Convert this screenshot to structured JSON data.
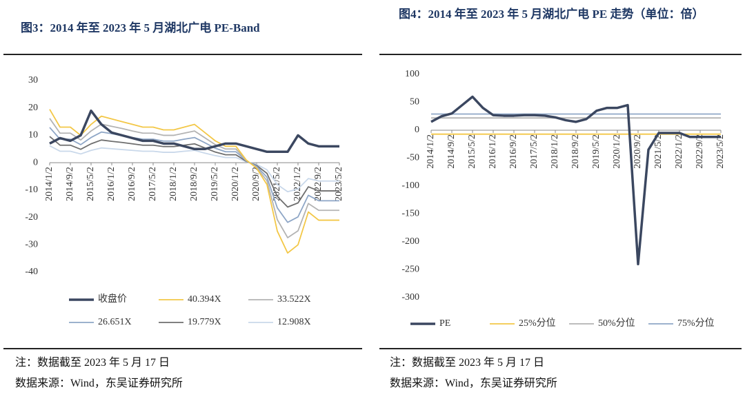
{
  "chart_data": [
    {
      "type": "line",
      "title": "图3：2014 年至 2023 年 5 月湖北广电 PE-Band",
      "categories": [
        "2014/1/2",
        null,
        "2014/9/2",
        null,
        "2015/5/2",
        null,
        "2016/1/2",
        null,
        "2016/9/2",
        null,
        "2017/5/2",
        null,
        "2018/1/2",
        null,
        "2018/9/2",
        null,
        "2019/5/2",
        null,
        "2020/1/2",
        null,
        "2020/9/2",
        null,
        "2021/5/2",
        null,
        "2022/1/2",
        null,
        "2022/9/2",
        null,
        "2023/5/2"
      ],
      "ylim": [
        -40,
        30
      ],
      "yticks": [
        -40,
        -30,
        -20,
        -10,
        0,
        10,
        20,
        30
      ],
      "series": [
        {
          "name": "收盘价",
          "color": "#3b4760",
          "width": 3.5,
          "values": [
            7,
            9,
            8,
            10,
            19,
            14,
            11,
            10,
            9,
            8,
            8,
            7,
            7,
            6,
            5,
            5,
            6,
            7,
            7,
            6,
            5,
            4,
            4,
            4,
            10,
            7,
            6,
            6,
            6
          ]
        },
        {
          "name": "40.394X",
          "color": "#f3c746",
          "width": 1.8,
          "values": [
            19.5,
            13,
            13,
            10,
            14,
            17,
            16,
            15,
            14,
            13,
            13,
            12,
            12,
            13,
            14,
            11,
            8,
            6,
            6,
            1,
            -2,
            -8,
            -25,
            -33,
            -30,
            -18,
            -21,
            -21,
            -21
          ]
        },
        {
          "name": "33.522X",
          "color": "#b3b3b3",
          "width": 1.8,
          "values": [
            16.2,
            10.8,
            10.8,
            8.3,
            11.6,
            14.1,
            13.3,
            12.5,
            11.6,
            10.8,
            10.8,
            10.0,
            10.0,
            10.8,
            11.6,
            9.1,
            6.6,
            5.0,
            5.0,
            0.8,
            -1.7,
            -6.6,
            -20.8,
            -27.4,
            -24.9,
            -14.9,
            -17.4,
            -17.4,
            -17.4
          ]
        },
        {
          "name": "26.651X",
          "color": "#8ea6c6",
          "width": 1.8,
          "values": [
            12.9,
            8.6,
            8.6,
            6.6,
            9.2,
            11.2,
            10.6,
            9.9,
            9.2,
            8.6,
            8.6,
            7.9,
            7.9,
            8.6,
            9.2,
            7.3,
            5.3,
            4.0,
            4.0,
            0.7,
            -1.3,
            -5.3,
            -16.5,
            -21.8,
            -19.8,
            -11.9,
            -13.9,
            -13.9,
            -13.9
          ]
        },
        {
          "name": "19.779X",
          "color": "#6e6e6e",
          "width": 1.8,
          "values": [
            9.6,
            6.4,
            6.4,
            4.9,
            6.9,
            8.3,
            7.8,
            7.4,
            6.9,
            6.4,
            6.4,
            5.9,
            5.9,
            6.4,
            6.9,
            5.4,
            3.9,
            2.9,
            2.9,
            0.5,
            -1.0,
            -3.9,
            -12.3,
            -16.2,
            -14.7,
            -8.8,
            -10.3,
            -10.3,
            -10.3
          ]
        },
        {
          "name": "12.908X",
          "color": "#c9d8ea",
          "width": 1.8,
          "values": [
            6.2,
            4.2,
            4.2,
            3.2,
            4.5,
            5.4,
            5.1,
            4.8,
            4.5,
            4.2,
            4.2,
            3.8,
            3.8,
            4.2,
            4.5,
            3.5,
            2.6,
            1.9,
            1.9,
            0.3,
            -0.6,
            -2.6,
            -8.0,
            -10.6,
            -9.6,
            -5.8,
            -6.7,
            -6.7,
            -6.7
          ]
        }
      ]
    },
    {
      "type": "line",
      "title": "图4：2014 年至 2023 年 5 月湖北广电 PE 走势（单位：倍）",
      "categories": [
        "2014/1/2",
        null,
        "2014/9/2",
        null,
        "2015/5/2",
        null,
        "2016/1/2",
        null,
        "2016/9/2",
        null,
        "2017/5/2",
        null,
        "2018/1/2",
        null,
        "2018/9/2",
        null,
        "2019/5/2",
        null,
        "2020/1/2",
        null,
        "2020/9/2",
        null,
        "2021/5/2",
        null,
        "2022/1/2",
        null,
        "2022/9/2",
        null,
        "2023/5/2"
      ],
      "ylim": [
        -300,
        100
      ],
      "yticks": [
        -300,
        -250,
        -200,
        -150,
        -100,
        -50,
        0,
        50,
        100
      ],
      "series": [
        {
          "name": "PE",
          "color": "#3b4760",
          "width": 3.5,
          "values": [
            15,
            25,
            30,
            45,
            60,
            40,
            27,
            26,
            26,
            27,
            27,
            26,
            23,
            18,
            15,
            20,
            35,
            40,
            40,
            45,
            -240,
            -35,
            -5,
            -5,
            -5,
            -12,
            -12,
            -12,
            -12
          ]
        },
        {
          "name": "25%分位",
          "color": "#f3c746",
          "width": 1.8,
          "values": [
            -7,
            -7,
            -7,
            -7,
            -7,
            -7,
            -7,
            -7,
            -7,
            -7,
            -7,
            -7,
            -7,
            -7,
            -7,
            -7,
            -7,
            -7,
            -7,
            -7,
            -7,
            -7,
            -7,
            -7,
            -7,
            -7,
            -7,
            -7,
            -7
          ]
        },
        {
          "name": "50%分位",
          "color": "#b3b3b3",
          "width": 1.8,
          "values": [
            22,
            22,
            22,
            22,
            22,
            22,
            22,
            22,
            22,
            22,
            22,
            22,
            22,
            22,
            22,
            22,
            22,
            22,
            22,
            22,
            22,
            22,
            22,
            22,
            22,
            22,
            22,
            22,
            22
          ]
        },
        {
          "name": "75%分位",
          "color": "#8ea6c6",
          "width": 1.8,
          "values": [
            29,
            29,
            29,
            29,
            29,
            29,
            29,
            29,
            29,
            29,
            29,
            29,
            29,
            29,
            29,
            29,
            29,
            29,
            29,
            29,
            29,
            29,
            29,
            29,
            29,
            29,
            29,
            29,
            29
          ]
        }
      ]
    }
  ],
  "footnotes": [
    {
      "note": "注：数据截至 2023 年 5 月 17 日",
      "source": "数据来源：Wind，东吴证券研究所"
    },
    {
      "note": "注：数据截至 2023 年 5 月 17 日",
      "source": "数据来源：Wind，东吴证券研究所"
    }
  ]
}
